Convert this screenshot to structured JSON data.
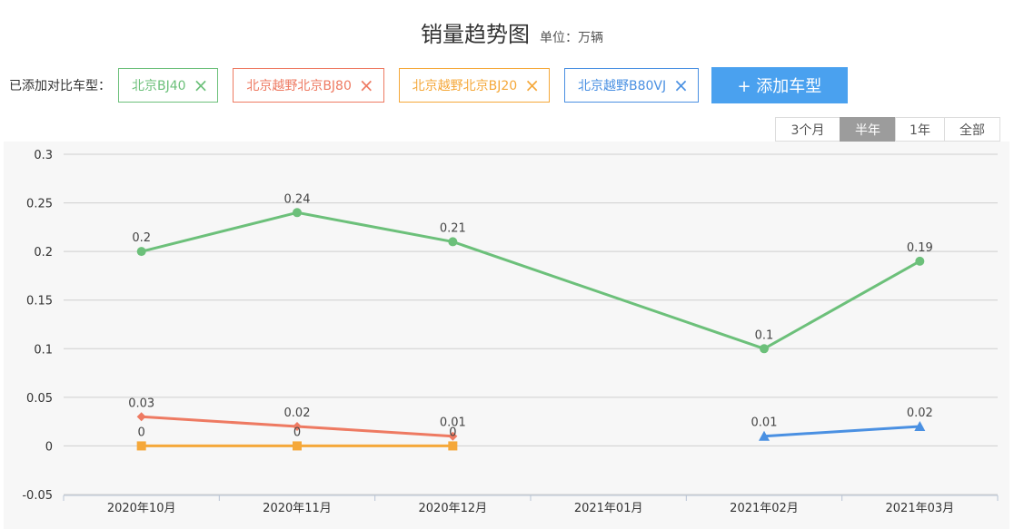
{
  "header": {
    "title": "销量趋势图",
    "unit": "单位：万辆"
  },
  "compare": {
    "label": "已添加对比车型：",
    "models": [
      {
        "name": "北京BJ40",
        "color": "#6cc07a"
      },
      {
        "name": "北京越野北京BJ80",
        "color": "#ee7a62"
      },
      {
        "name": "北京越野北京BJ20",
        "color": "#f5a83a"
      },
      {
        "name": "北京越野B80VJ",
        "color": "#4a90e2"
      }
    ],
    "remove_icon": "×",
    "add_button": "+ 添加车型"
  },
  "range_tabs": {
    "items": [
      "3个月",
      "半年",
      "1年",
      "全部"
    ],
    "active": "半年"
  },
  "chart_data": {
    "type": "line",
    "categories": [
      "2020年10月",
      "2020年11月",
      "2020年12月",
      "2021年01月",
      "2021年02月",
      "2021年03月"
    ],
    "ylim": [
      -0.05,
      0.3
    ],
    "yticks": [
      -0.05,
      0,
      0.05,
      0.1,
      0.15,
      0.2,
      0.25,
      0.3
    ],
    "ytick_labels": [
      "-0.05",
      "0",
      "0.05",
      "0.1",
      "0.15",
      "0.2",
      "0.25",
      "0.3"
    ],
    "grid": true,
    "series": [
      {
        "name": "北京BJ40",
        "color": "#6cc07a",
        "marker": "circle",
        "values": [
          0.2,
          0.24,
          0.21,
          null,
          0.1,
          0.19
        ],
        "labels": [
          "0.2",
          "0.24",
          "0.21",
          null,
          "0.1",
          "0.19"
        ]
      },
      {
        "name": "北京越野北京BJ80",
        "color": "#ee7a62",
        "marker": "diamond",
        "values": [
          0.03,
          0.02,
          0.01,
          null,
          null,
          null
        ],
        "labels": [
          "0.03",
          "0.02",
          "0.01",
          null,
          null,
          null
        ]
      },
      {
        "name": "北京越野北京BJ20",
        "color": "#f5a83a",
        "marker": "square",
        "values": [
          0,
          0,
          0,
          null,
          null,
          null
        ],
        "labels": [
          "0",
          "0",
          "0",
          null,
          null,
          null
        ]
      },
      {
        "name": "北京越野B80VJ",
        "color": "#4a90e2",
        "marker": "triangle",
        "values": [
          null,
          null,
          null,
          null,
          0.01,
          0.02
        ],
        "labels": [
          null,
          null,
          null,
          null,
          "0.01",
          "0.02"
        ]
      }
    ]
  }
}
